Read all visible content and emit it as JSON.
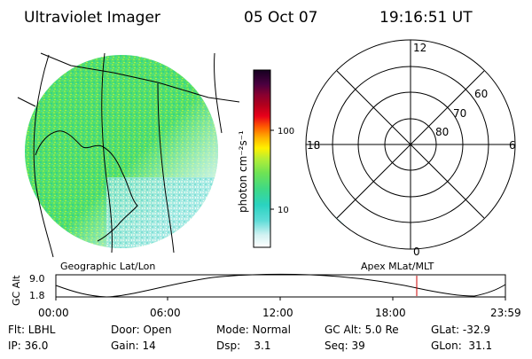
{
  "header": {
    "title": "Ultraviolet Imager",
    "date": "05 Oct 07",
    "time": "19:16:51 UT"
  },
  "colorbar": {
    "unit_label": "photon cm⁻²s⁻¹",
    "tick_labels": [
      "100",
      "10"
    ],
    "scale": "log"
  },
  "polar_plot": {
    "mlt_labels": [
      "12",
      "18",
      "6",
      "0"
    ],
    "lat_labels": [
      "60",
      "70",
      "80"
    ]
  },
  "panel_labels": {
    "left": "Geographic Lat/Lon",
    "right": "Apex MLat/MLT"
  },
  "altitude_strip": {
    "ylabel": "GC Alt",
    "y_ticks": [
      "9.0",
      "1.8"
    ],
    "x_ticks": [
      "00:00",
      "06:00",
      "12:00",
      "18:00",
      "23:59"
    ],
    "current_time_marker": "19:16:51"
  },
  "info": {
    "flt": "Flt: LBHL",
    "door": "Door: Open",
    "mode": "Mode: Normal",
    "gc_alt": "GC Alt: 5.0 Re",
    "glat": "GLat: -32.9",
    "ip": "IP: 36.0",
    "gain": "Gain: 14",
    "dsp": "Dsp:    3.1",
    "seq": "Seq: 39",
    "glon": "GLon:  31.1"
  },
  "colors": {
    "foreground": "#000000",
    "background": "#ffffff",
    "time_marker": "#cc0000"
  }
}
